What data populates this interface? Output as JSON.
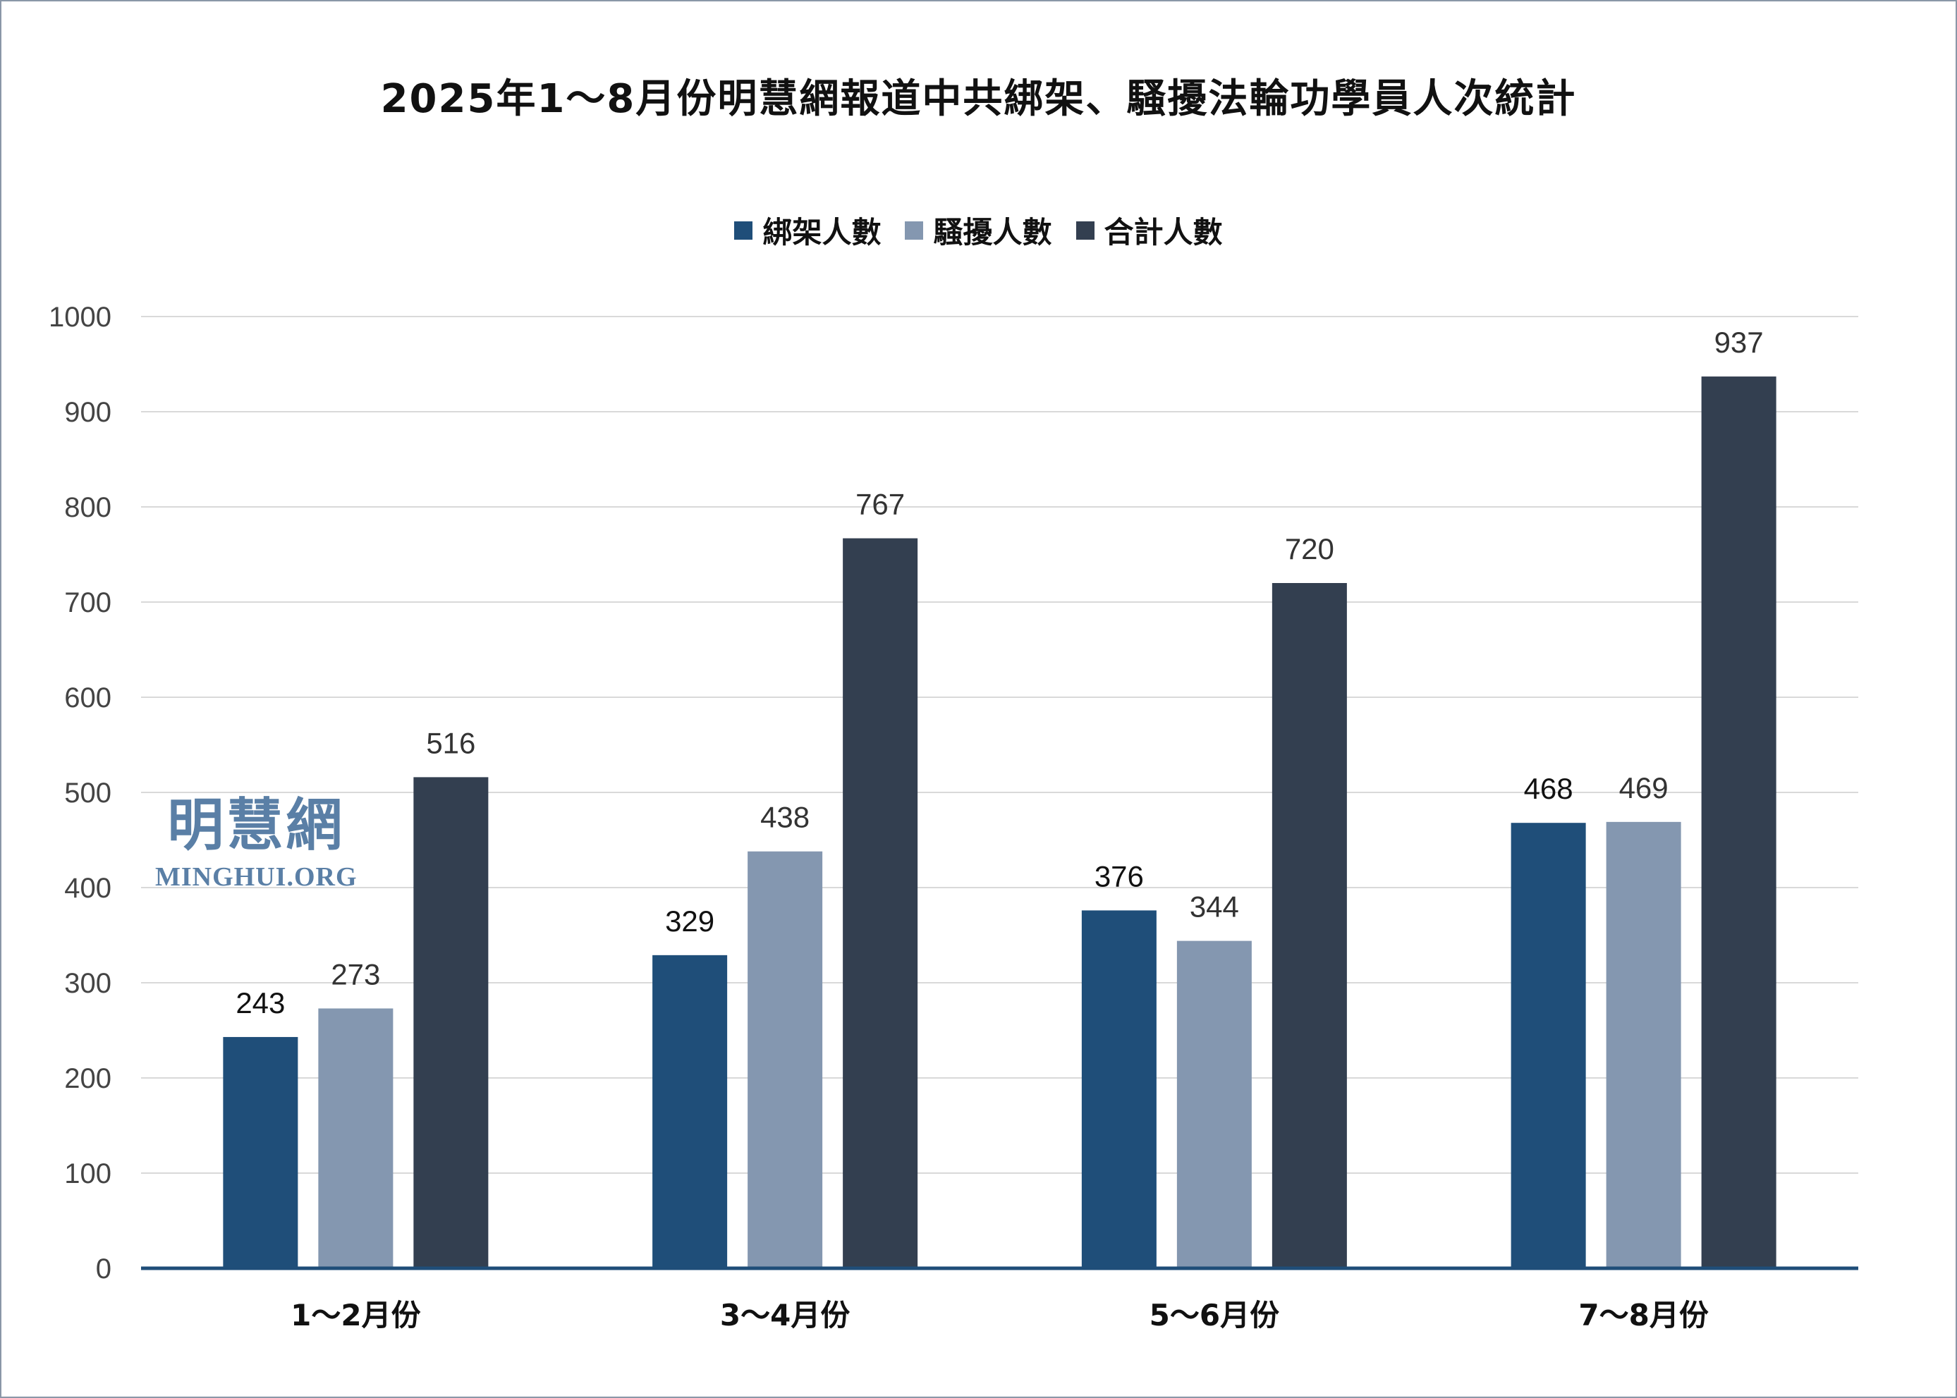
{
  "chart_data": {
    "type": "bar",
    "title": "2025年1～8月份明慧網報道中共綁架、騷擾法輪功學員人次統計",
    "categories": [
      "1～2月份",
      "3～4月份",
      "5～6月份",
      "7～8月份"
    ],
    "series": [
      {
        "name": "綁架人數",
        "color": "#1f4e79",
        "values": [
          243,
          329,
          376,
          468
        ]
      },
      {
        "name": "騷擾人數",
        "color": "#8497b0",
        "values": [
          273,
          438,
          344,
          469
        ]
      },
      {
        "name": "合計人數",
        "color": "#333f50",
        "values": [
          516,
          767,
          720,
          937
        ]
      }
    ],
    "ylim": [
      0,
      1000
    ],
    "yticks": [
      0,
      100,
      200,
      300,
      400,
      500,
      600,
      700,
      800,
      900,
      1000
    ],
    "xlabel": "",
    "ylabel": "",
    "grid": true,
    "legend_position": "top"
  },
  "watermark": {
    "name": "明慧網",
    "site": "MINGHUI.ORG"
  },
  "colors": {
    "gridline": "#d9d9d9",
    "axis": "#1f4e79",
    "frame": "#8a97a8"
  }
}
